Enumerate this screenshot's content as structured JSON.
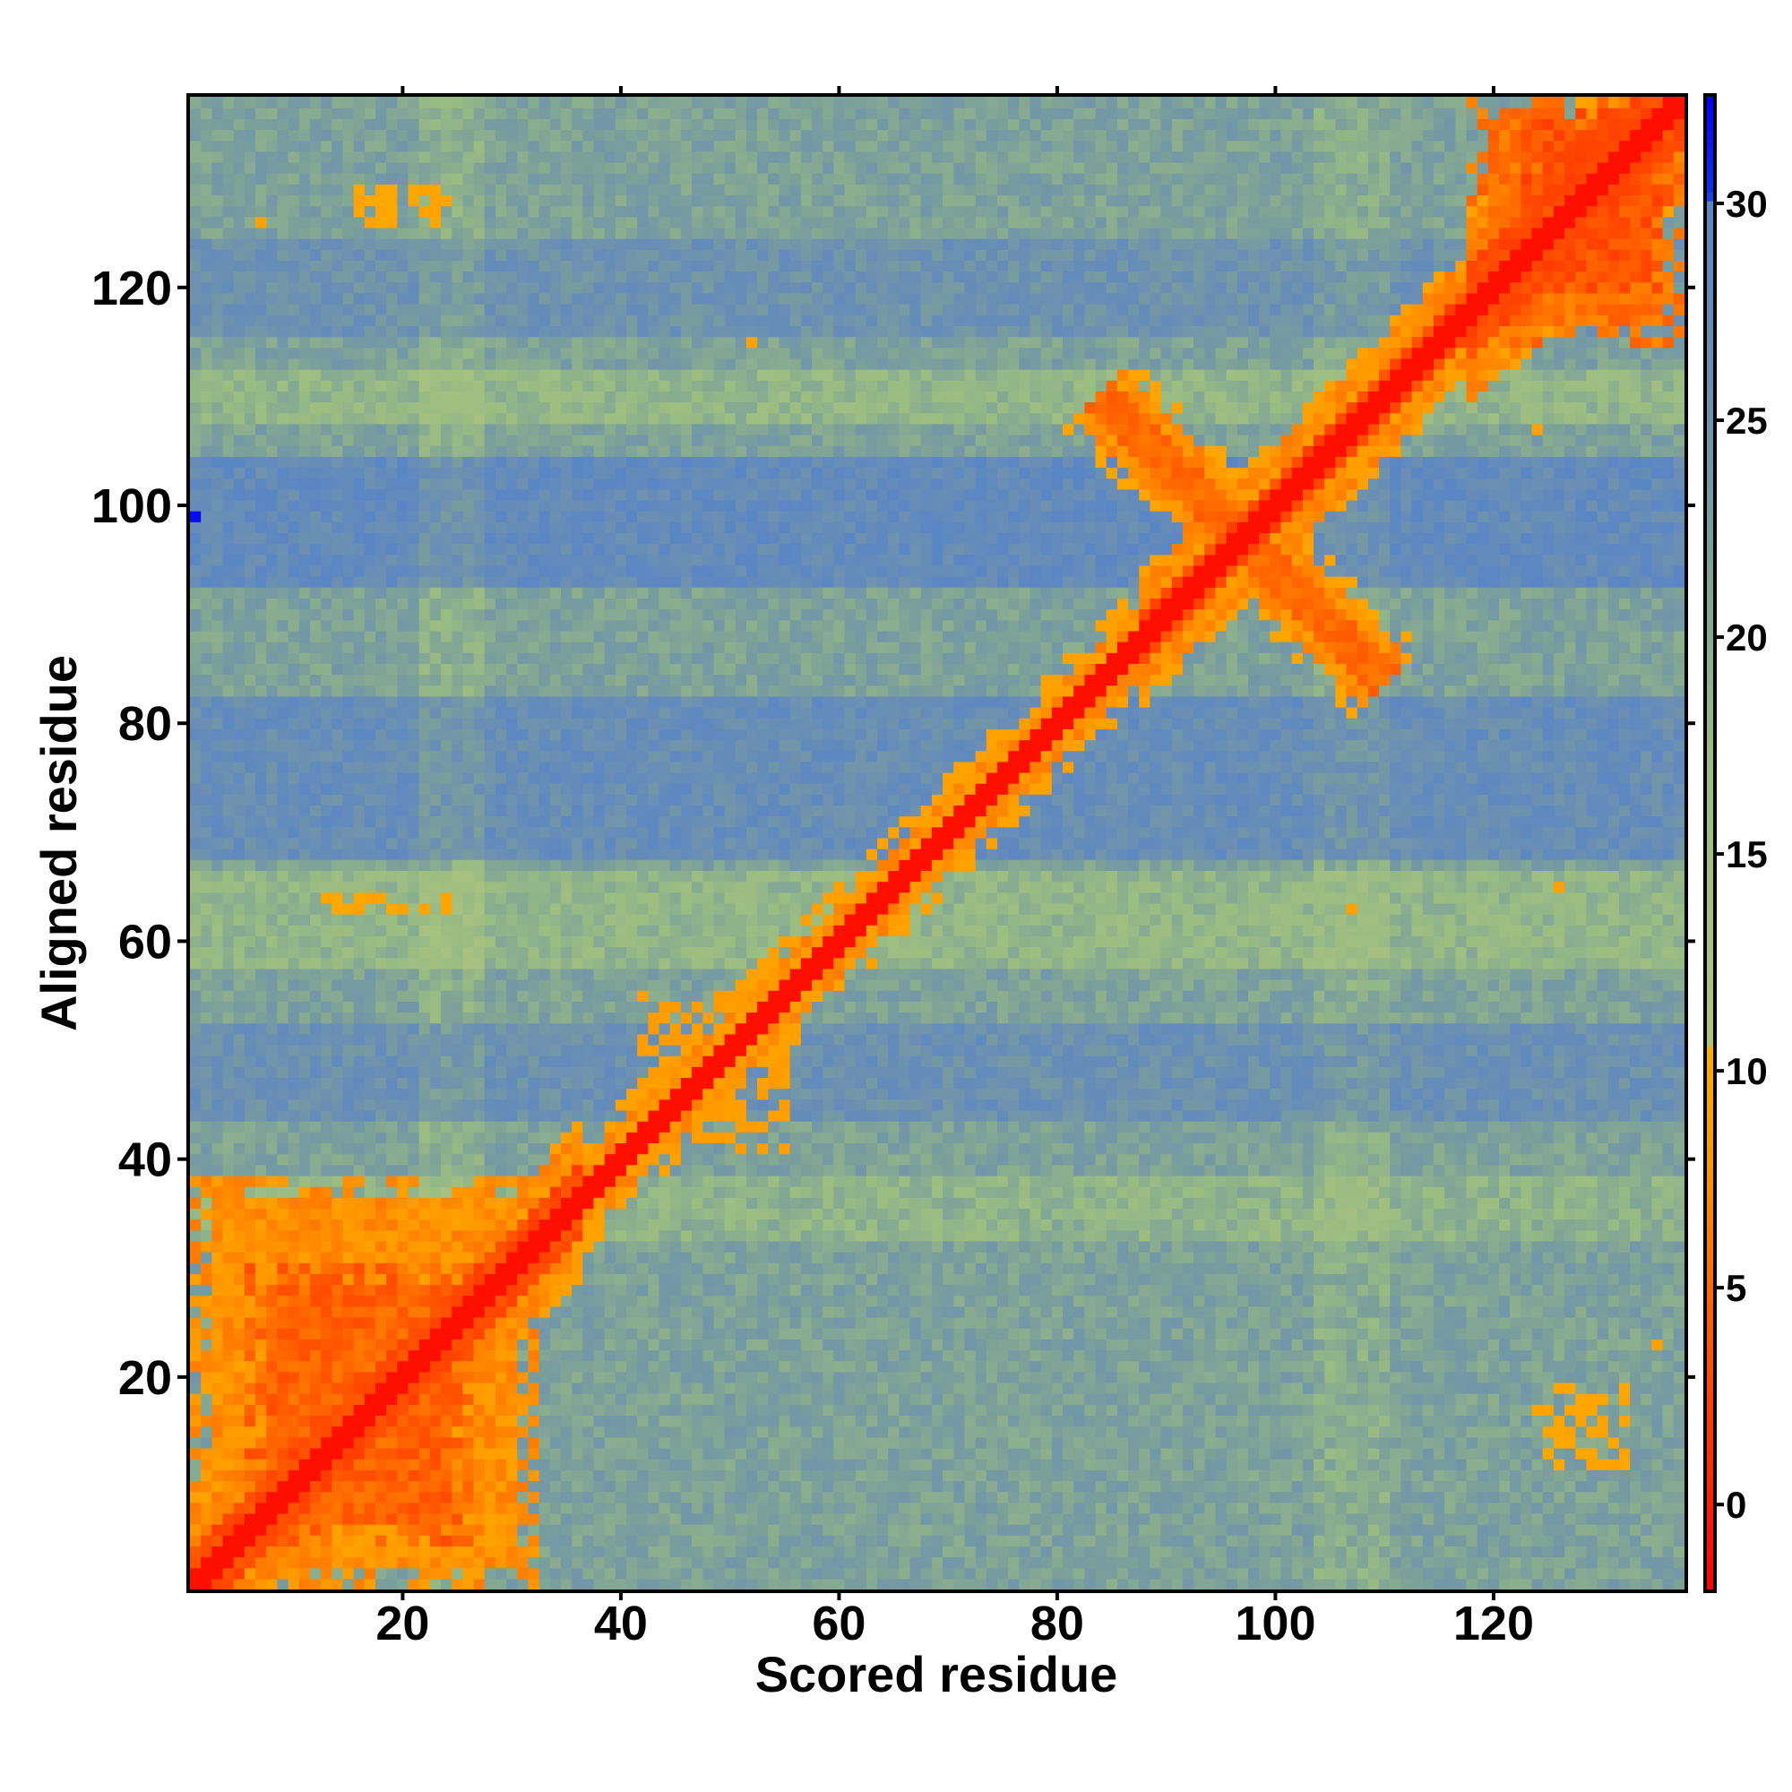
{
  "chart_data": {
    "type": "heatmap",
    "title": "",
    "xlabel": "Scored residue",
    "ylabel": "Aligned residue",
    "n_residues": 137,
    "xlim": [
      1,
      137
    ],
    "ylim": [
      1,
      137
    ],
    "x_ticks": [
      20,
      40,
      60,
      80,
      100,
      120
    ],
    "y_ticks": [
      20,
      40,
      60,
      80,
      100,
      120
    ],
    "colorbar": {
      "range": [
        -2,
        32.5
      ],
      "ticks": [
        0,
        5,
        10,
        15,
        20,
        25,
        30
      ],
      "stops": [
        {
          "value": -2,
          "color": "#ff0000"
        },
        {
          "value": 4,
          "color": "#ff5a00"
        },
        {
          "value": 8,
          "color": "#ff9900"
        },
        {
          "value": 10.5,
          "color": "#ffad00"
        },
        {
          "value": 10.6,
          "color": "#b0c47e"
        },
        {
          "value": 17,
          "color": "#9bbd82"
        },
        {
          "value": 22,
          "color": "#7ba09a"
        },
        {
          "value": 26,
          "color": "#6b8fb3"
        },
        {
          "value": 30,
          "color": "#5a86c4"
        },
        {
          "value": 30.2,
          "color": "#1133ee"
        },
        {
          "value": 32.5,
          "color": "#0000ff"
        }
      ]
    },
    "background": {
      "value_range": [
        13,
        29
      ],
      "blue_bands_aligned": [
        [
          [
            44,
            52
          ],
          8
        ],
        [
          [
            68,
            82
          ],
          10
        ],
        [
          [
            93,
            104
          ],
          12
        ],
        [
          [
            116,
            124
          ],
          7
        ]
      ],
      "green_bands_aligned": [
        [
          [
            33,
            38
          ],
          5
        ],
        [
          [
            58,
            66
          ],
          6
        ],
        [
          [
            108,
            112
          ],
          6
        ]
      ],
      "green_cols_scored": [
        [
          [
            22,
            27
          ],
          5
        ],
        [
          [
            104,
            110
          ],
          4
        ]
      ]
    },
    "diagonal": {
      "width_core": 1.5,
      "width_by_segment": [
        {
          "from": 1,
          "to": 37,
          "width": 6
        },
        {
          "from": 37,
          "to": 60,
          "width": 3.5
        },
        {
          "from": 60,
          "to": 88,
          "width": 3.5
        },
        {
          "from": 88,
          "to": 118,
          "width": 5
        },
        {
          "from": 118,
          "to": 137,
          "width": 8
        }
      ]
    },
    "low_error_blocks": [
      {
        "scored": [
          1,
          32
        ],
        "aligned": [
          1,
          38
        ],
        "value": 6
      },
      {
        "scored": [
          6,
          26
        ],
        "aligned": [
          5,
          30
        ],
        "value": 3
      },
      {
        "scored": [
          118,
          137
        ],
        "aligned": [
          115,
          137
        ],
        "value": 4
      },
      {
        "scored": [
          123,
          136
        ],
        "aligned": [
          120,
          136
        ],
        "value": 2
      }
    ],
    "cross_arm": {
      "from": [
        84,
        110
      ],
      "to": [
        110,
        84
      ],
      "width": 3.5,
      "value": 6
    },
    "small_patches": [
      {
        "scored": [
          42,
          55
        ],
        "aligned": [
          41,
          55
        ],
        "value": 8
      },
      {
        "scored": [
          13,
          24
        ],
        "aligned": [
          63,
          64
        ],
        "value": 9
      },
      {
        "scored": [
          124,
          132
        ],
        "aligned": [
          12,
          19
        ],
        "value": 9
      },
      {
        "scored": [
          16,
          24
        ],
        "aligned": [
          126,
          129
        ],
        "value": 9
      }
    ],
    "isolated_points": [
      {
        "scored": 107,
        "aligned": 63,
        "value": 9
      },
      {
        "scored": 126,
        "aligned": 65,
        "value": 9
      },
      {
        "scored": 124,
        "aligned": 107,
        "value": 9
      },
      {
        "scored": 52,
        "aligned": 115,
        "value": 9
      },
      {
        "scored": 7,
        "aligned": 126,
        "value": 9
      },
      {
        "scored": 135,
        "aligned": 23,
        "value": 9
      },
      {
        "scored": 1,
        "aligned": 99,
        "value": 32
      }
    ]
  }
}
